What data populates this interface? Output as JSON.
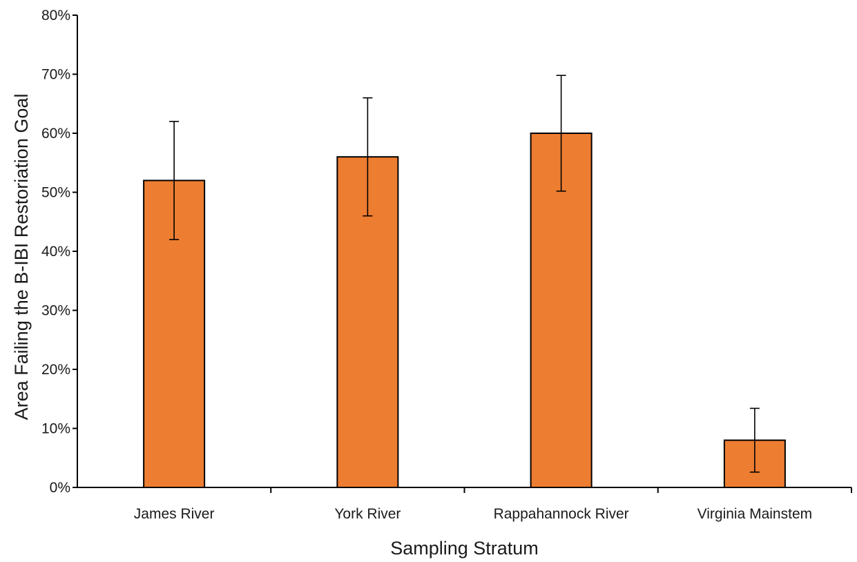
{
  "chart_data": {
    "type": "bar",
    "title": "",
    "xlabel": "Sampling Stratum",
    "ylabel": "Area Failing  the B-IBI Restoriation Goal",
    "categories": [
      "James River",
      "York River",
      "Rappahannock River",
      "Virginia Mainstem"
    ],
    "values": [
      52,
      56,
      60,
      8
    ],
    "error_low": [
      42,
      46,
      50.2,
      2.6
    ],
    "error_high": [
      62,
      66,
      69.8,
      13.4
    ],
    "ylim": [
      0,
      80
    ],
    "yticks": [
      0,
      10,
      20,
      30,
      40,
      50,
      60,
      70,
      80
    ],
    "ytick_labels": [
      "0%",
      "10%",
      "20%",
      "30%",
      "40%",
      "50%",
      "60%",
      "70%",
      "80%"
    ],
    "bar_color": "#ED7D31",
    "grid": false,
    "legend": "none"
  }
}
